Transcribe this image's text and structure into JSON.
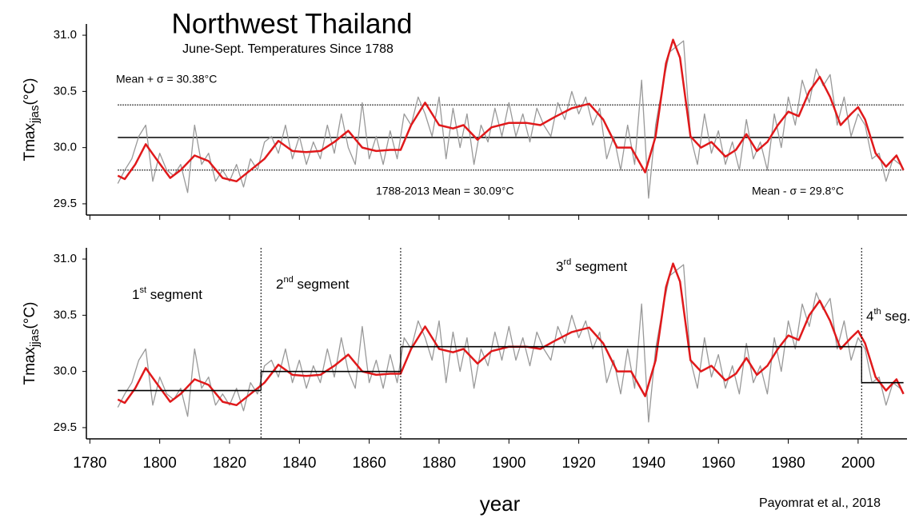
{
  "chart_data": {
    "type": "line",
    "title": "Northwest Thailand",
    "subtitle": "June-Sept. Temperatures Since 1788",
    "y_label": {
      "main": "Tmax",
      "sub": "jjas",
      "unit": "(°C)"
    },
    "x_label": "year",
    "credit": "Payomrat et al., 2018",
    "xlim": [
      1779,
      2014
    ],
    "xticks": [
      1780,
      1800,
      1820,
      1840,
      1860,
      1880,
      1900,
      1920,
      1940,
      1960,
      1980,
      2000
    ],
    "ylim": [
      29.4,
      31.1
    ],
    "yticks": [
      29.5,
      {
        "value": 30.0,
        "label": "30.0"
      },
      30.5,
      {
        "value": 31.0,
        "label": "31.0"
      }
    ],
    "series": [
      {
        "color": "#999999",
        "x": [
          1788,
          1790,
          1792,
          1794,
          1796,
          1798,
          1800,
          1802,
          1804,
          1806,
          1808,
          1810,
          1812,
          1814,
          1816,
          1818,
          1820,
          1822,
          1824,
          1826,
          1828,
          1830,
          1832,
          1834,
          1836,
          1838,
          1840,
          1842,
          1844,
          1846,
          1848,
          1850,
          1852,
          1854,
          1856,
          1858,
          1860,
          1862,
          1864,
          1866,
          1868,
          1870,
          1872,
          1874,
          1876,
          1878,
          1880,
          1882,
          1884,
          1886,
          1888,
          1890,
          1892,
          1894,
          1896,
          1898,
          1900,
          1902,
          1904,
          1906,
          1908,
          1910,
          1912,
          1914,
          1916,
          1918,
          1920,
          1922,
          1924,
          1926,
          1928,
          1930,
          1932,
          1934,
          1936,
          1938,
          1940,
          1942,
          1944,
          1946,
          1948,
          1950,
          1952,
          1954,
          1956,
          1958,
          1960,
          1962,
          1964,
          1966,
          1968,
          1970,
          1972,
          1974,
          1976,
          1978,
          1980,
          1982,
          1984,
          1986,
          1988,
          1990,
          1992,
          1994,
          1996,
          1998,
          2000,
          2002,
          2004,
          2006,
          2008,
          2010,
          2012
        ],
        "values": [
          29.68,
          29.8,
          29.9,
          30.1,
          30.2,
          29.7,
          29.95,
          29.8,
          29.75,
          29.85,
          29.6,
          30.2,
          29.85,
          29.95,
          29.7,
          29.8,
          29.7,
          29.85,
          29.65,
          29.9,
          29.8,
          30.05,
          30.1,
          29.95,
          30.2,
          29.9,
          30.1,
          29.85,
          30.05,
          29.9,
          30.2,
          29.95,
          30.3,
          30.0,
          29.85,
          30.4,
          29.9,
          30.1,
          29.85,
          30.15,
          29.9,
          30.3,
          30.2,
          30.45,
          30.3,
          30.1,
          30.45,
          29.9,
          30.35,
          30.0,
          30.3,
          29.85,
          30.2,
          30.05,
          30.35,
          30.1,
          30.4,
          30.1,
          30.3,
          30.05,
          30.35,
          30.2,
          30.1,
          30.4,
          30.25,
          30.5,
          30.3,
          30.45,
          30.2,
          30.35,
          29.9,
          30.1,
          29.8,
          30.2,
          29.85,
          30.6,
          29.55,
          30.2,
          30.55,
          30.85,
          30.9,
          30.95,
          30.1,
          29.85,
          30.3,
          29.95,
          30.15,
          29.85,
          30.05,
          29.8,
          30.25,
          29.9,
          30.05,
          29.8,
          30.3,
          30.0,
          30.45,
          30.2,
          30.6,
          30.4,
          30.7,
          30.55,
          30.65,
          30.2,
          30.45,
          30.1,
          30.3,
          30.2,
          29.9,
          29.95,
          29.7,
          29.9,
          29.85
        ]
      },
      {
        "color": "#e0191b",
        "x": [
          1788,
          1790,
          1793,
          1796,
          1799,
          1803,
          1806,
          1810,
          1814,
          1818,
          1822,
          1826,
          1830,
          1834,
          1838,
          1842,
          1846,
          1850,
          1854,
          1858,
          1862,
          1866,
          1869,
          1872,
          1876,
          1880,
          1884,
          1887,
          1891,
          1895,
          1900,
          1905,
          1909,
          1913,
          1918,
          1923,
          1927,
          1931,
          1935,
          1939,
          1942,
          1945,
          1947,
          1949,
          1952,
          1955,
          1958,
          1962,
          1965,
          1968,
          1971,
          1974,
          1977,
          1980,
          1983,
          1986,
          1989,
          1992,
          1995,
          1998,
          2000,
          2002,
          2005,
          2008,
          2011,
          2013
        ],
        "values": [
          29.75,
          29.72,
          29.85,
          30.03,
          29.9,
          29.73,
          29.8,
          29.93,
          29.88,
          29.73,
          29.7,
          29.8,
          29.9,
          30.06,
          29.97,
          29.96,
          29.97,
          30.05,
          30.15,
          30.0,
          29.97,
          29.98,
          29.98,
          30.2,
          30.4,
          30.2,
          30.17,
          30.2,
          30.07,
          30.18,
          30.22,
          30.22,
          30.2,
          30.27,
          30.35,
          30.39,
          30.25,
          30.0,
          30.0,
          29.78,
          30.1,
          30.75,
          30.96,
          30.8,
          30.1,
          30.0,
          30.05,
          29.92,
          29.98,
          30.12,
          29.97,
          30.05,
          30.2,
          30.32,
          30.28,
          30.5,
          30.63,
          30.45,
          30.2,
          30.3,
          30.36,
          30.25,
          29.95,
          29.83,
          29.93,
          29.8
        ]
      }
    ],
    "panels": [
      {
        "hlines": [
          {
            "value": 30.38,
            "style": "dotted",
            "label": "Mean + σ = 30.38°C"
          },
          {
            "value": 30.09,
            "style": "solid",
            "label": "1788-2013 Mean = 30.09°C"
          },
          {
            "value": 29.8,
            "style": "dotted",
            "label": "Mean - σ = 29.8°C"
          }
        ]
      },
      {
        "segments": [
          {
            "start": 1788,
            "end": 1829,
            "mean": 29.83,
            "num": "1",
            "sup": "st",
            "text": " segment"
          },
          {
            "start": 1829,
            "end": 1869,
            "mean": 30.0,
            "num": "2",
            "sup": "nd",
            "text": " segment"
          },
          {
            "start": 1869,
            "end": 2001,
            "mean": 30.22,
            "num": "3",
            "sup": "rd",
            "text": " segment"
          },
          {
            "start": 2001,
            "end": 2013,
            "mean": 29.9,
            "num": "4",
            "sup": "th",
            "text": " seg."
          }
        ]
      }
    ]
  }
}
